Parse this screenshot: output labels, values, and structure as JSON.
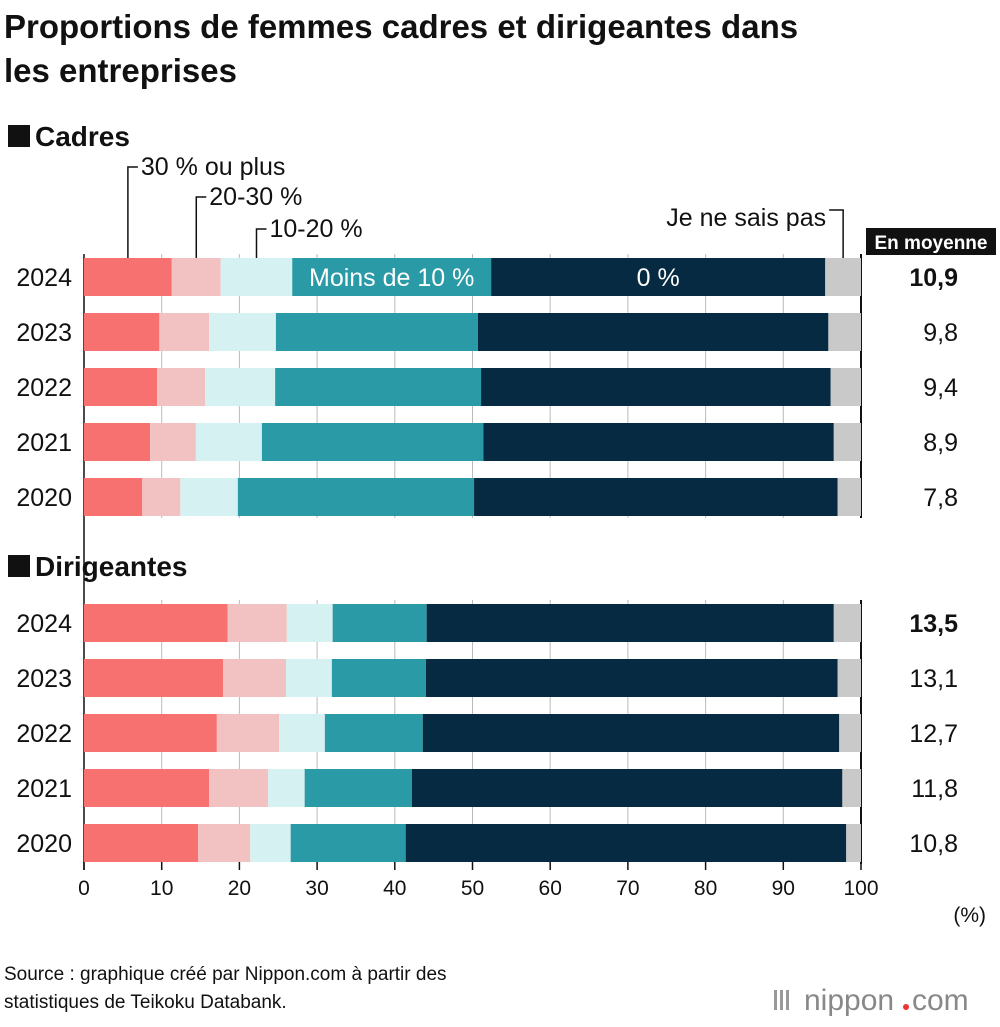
{
  "chart_data": {
    "type": "bar",
    "orientation": "horizontal-stacked-100",
    "title": "Proportions de femmes cadres et dirigeantes dans les entreprises",
    "title_lines": [
      "Proportions de femmes cadres et dirigeantes dans",
      "les entreprises"
    ],
    "xlabel": "(%)",
    "xlim": [
      0,
      100
    ],
    "xticks": [
      "0",
      "10",
      "20",
      "30",
      "40",
      "50",
      "60",
      "70",
      "80",
      "90",
      "100"
    ],
    "grid": true,
    "series_names": [
      "30 % ou plus",
      "20-30 %",
      "10-20 %",
      "Moins de 10 %",
      "0 %",
      "Je ne sais pas"
    ],
    "colors": [
      "#f87171",
      "#f2c2c2",
      "#d5f1f1",
      "#2a9aa6",
      "#062a41",
      "#c9c9c9"
    ],
    "average_header": "En moyenne",
    "panels": [
      {
        "name": "Cadres",
        "categories": [
          "2024",
          "2023",
          "2022",
          "2021",
          "2020"
        ],
        "values": [
          [
            11.3,
            6.3,
            9.2,
            25.6,
            43.0,
            4.6
          ],
          [
            9.7,
            6.4,
            8.6,
            26.0,
            45.1,
            4.2
          ],
          [
            9.4,
            6.2,
            9.0,
            26.5,
            45.0,
            3.9
          ],
          [
            8.5,
            5.9,
            8.5,
            28.5,
            45.1,
            3.5
          ],
          [
            7.5,
            4.9,
            7.4,
            30.4,
            46.8,
            3.0
          ]
        ],
        "averages": [
          "10,9",
          "9,8",
          "9,4",
          "8,9",
          "7,8"
        ]
      },
      {
        "name": "Dirigeantes",
        "categories": [
          "2024",
          "2023",
          "2022",
          "2021",
          "2020"
        ],
        "values": [
          [
            18.5,
            7.6,
            5.9,
            12.1,
            52.4,
            3.5
          ],
          [
            17.9,
            8.1,
            5.9,
            12.1,
            53.0,
            3.0
          ],
          [
            17.1,
            8.0,
            5.9,
            12.6,
            53.6,
            2.8
          ],
          [
            16.1,
            7.6,
            4.7,
            13.8,
            55.4,
            2.4
          ],
          [
            14.7,
            6.7,
            5.2,
            14.8,
            56.7,
            1.9
          ]
        ],
        "averages": [
          "13,5",
          "13,1",
          "12,7",
          "11,8",
          "10,8"
        ]
      }
    ]
  },
  "source_lines": [
    "Source : graphique créé par Nippon.com à partir des",
    "statistiques de Teikoku Databank."
  ],
  "logo": "nippon.com"
}
